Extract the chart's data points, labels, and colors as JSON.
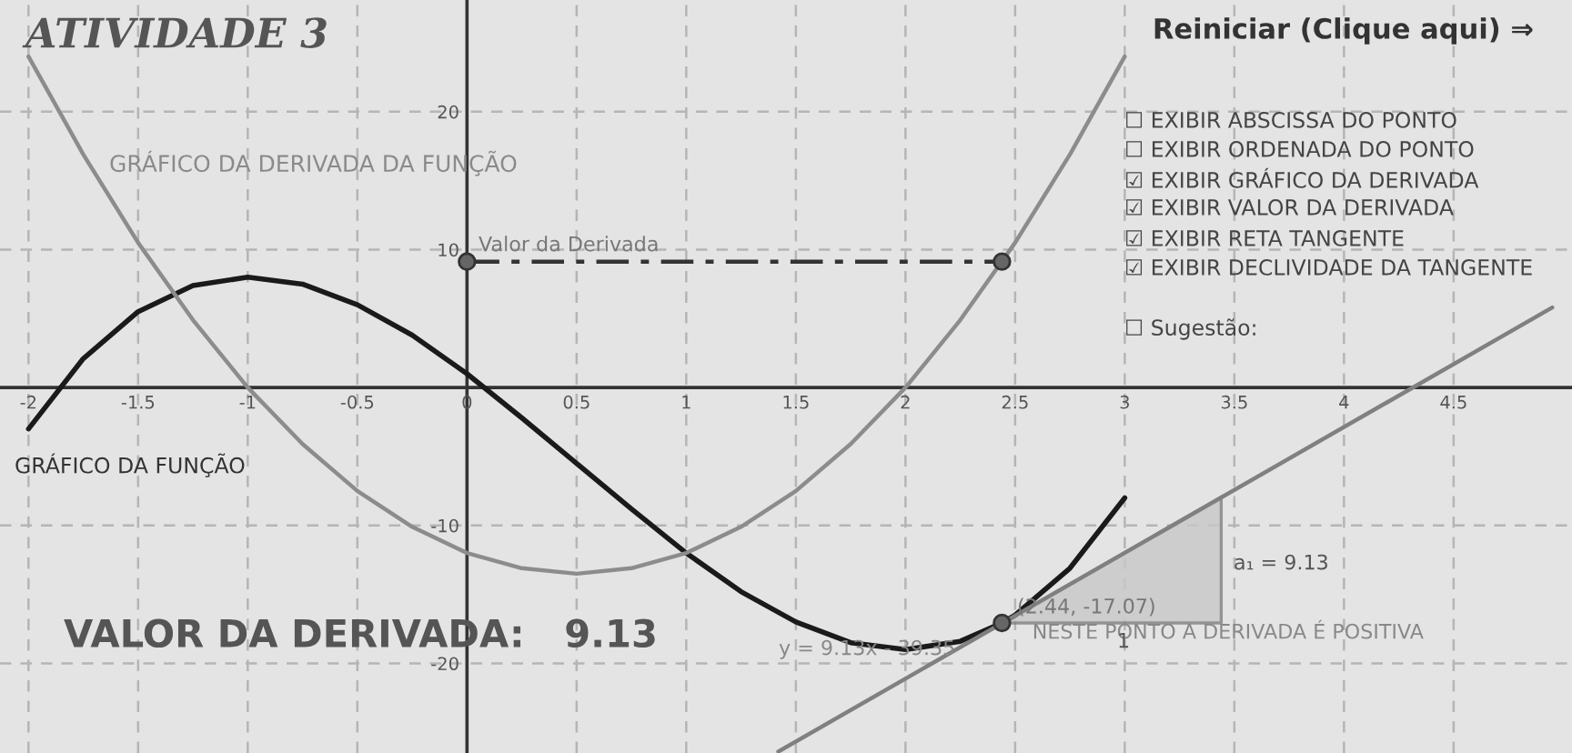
{
  "chart_data": {
    "type": "line",
    "title": "ATIVIDADE 3",
    "xlim": [
      -2.13,
      5.04
    ],
    "ylim": [
      -26.5,
      28.1
    ],
    "xticks": [
      -2,
      -1.5,
      -1,
      -0.5,
      0,
      0.5,
      1,
      1.5,
      2,
      2.5,
      3,
      3.5,
      4,
      4.5
    ],
    "yticks": [
      -20,
      -10,
      10,
      20
    ],
    "grid": true,
    "series": [
      {
        "color": "#1a1a1a",
        "x": [
          -2,
          -1.75,
          -1.5,
          -1.25,
          -1,
          -0.75,
          -0.5,
          -0.25,
          0,
          0.25,
          0.5,
          0.75,
          1,
          1.25,
          1.5,
          1.75,
          2,
          2.25,
          2.44,
          2.5,
          2.75,
          3
        ],
        "values": [
          -3,
          2.1,
          5.5,
          7.4,
          8,
          7.5,
          6,
          3.8,
          1,
          -2.2,
          -5.5,
          -8.8,
          -12,
          -14.8,
          -17,
          -18.5,
          -19,
          -18.4,
          -17.07,
          -16.5,
          -13.1,
          -8
        ]
      },
      {
        "color": "#8c8c8c",
        "x": [
          -2,
          -1.75,
          -1.5,
          -1.25,
          -1,
          -0.75,
          -0.5,
          -0.25,
          0,
          0.25,
          0.5,
          0.75,
          1,
          1.25,
          1.5,
          1.75,
          2,
          2.25,
          2.5,
          2.75,
          3
        ],
        "values": [
          24,
          16.9,
          10.5,
          4.9,
          0,
          -4.1,
          -7.5,
          -10.1,
          -12,
          -13.1,
          -13.5,
          -13.1,
          -12,
          -10.1,
          -7.5,
          -4.1,
          0,
          4.9,
          10.5,
          16.9,
          24
        ]
      },
      {
        "color": "#808080",
        "x": [
          1.42,
          4.95
        ],
        "values": [
          -26.4,
          5.8
        ]
      },
      {
        "color": "#333333",
        "line_style": "dashed",
        "x": [
          0,
          2.44
        ],
        "values": [
          9.13,
          9.13
        ]
      },
      {
        "type": "area",
        "color": "#c8c8c8",
        "x": [
          2.44,
          3.44,
          3.44
        ],
        "values": [
          -17.07,
          -17.07,
          -7.94
        ]
      },
      {
        "type": "scatter",
        "color": "#666666",
        "marker": "circle",
        "x": [
          0,
          2.44,
          2.44
        ],
        "values": [
          9.13,
          9.13,
          -17.07
        ]
      }
    ],
    "annotations": [
      "GRÁFICO DA DERIVADA DA FUNÇÃO",
      "GRÁFICO DA FUNÇÃO",
      "Valor da Derivada",
      "VALOR DA DERIVADA:   9.13",
      {
        "text": "(2.44, -17.07)",
        "x": 2.44,
        "y": -17.07
      },
      {
        "text": "NESTE PONTO A DERIVADA É POSITIVA",
        "x": 2.44,
        "y": -17.07
      },
      "a₁ = 9.13",
      "1",
      "y = 9.13x - 39.35",
      "Reiniciar (Clique aqui) ⇒",
      "☐ EXIBIR ABSCISSA DO PONTO",
      "☐ EXIBIR ORDENADA DO PONTO",
      "☑ EXIBIR GRÁFICO DA DERIVADA",
      "☑ EXIBIR VALOR DA DERIVADA",
      "☑ EXIBIR RETA TANGENTE",
      "☑ EXIBIR DECLIVIDADE DA TANGENTE",
      "☐ Sugestão:"
    ]
  }
}
